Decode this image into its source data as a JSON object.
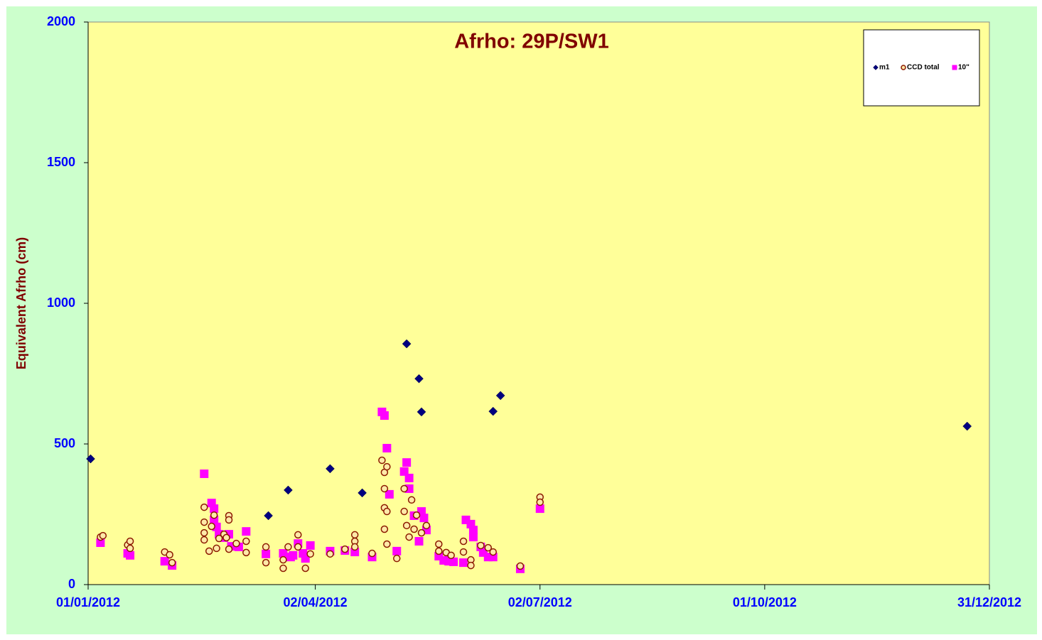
{
  "chart_data": {
    "type": "scatter",
    "title": "Afrho: 29P/SW1",
    "y_label": "Equivalent  Afrho (cm)",
    "xlim": [
      "2012-01-01",
      "2012-12-31"
    ],
    "xticks": [
      {
        "value": "2012-01-01",
        "label": "01/01/2012"
      },
      {
        "value": "2012-04-02",
        "label": "02/04/2012"
      },
      {
        "value": "2012-07-02",
        "label": "02/07/2012"
      },
      {
        "value": "2012-10-01",
        "label": "01/10/2012"
      },
      {
        "value": "2012-12-31",
        "label": "31/12/2012"
      }
    ],
    "ylim": [
      0,
      2000
    ],
    "yticks": [
      0,
      500,
      1000,
      1500,
      2000
    ],
    "legend": "top-right",
    "series": [
      {
        "name": "m1",
        "color": "#000080",
        "marker": "diamond",
        "x": [
          "2012-01-02",
          "2012-03-14",
          "2012-03-22",
          "2012-04-08",
          "2012-04-21",
          "2012-05-09",
          "2012-05-14",
          "2012-05-15",
          "2012-06-13",
          "2012-06-16",
          "2012-12-22"
        ],
        "values": [
          447,
          245,
          336,
          412,
          326,
          856,
          732,
          614,
          616,
          672,
          563
        ]
      },
      {
        "name": "CCD total",
        "color": "#8b1a00",
        "marker": "circle",
        "x": [
          "2012-01-06",
          "2012-01-07",
          "2012-01-17",
          "2012-01-18",
          "2012-01-18",
          "2012-02-01",
          "2012-02-03",
          "2012-02-04",
          "2012-02-17",
          "2012-02-17",
          "2012-02-17",
          "2012-02-17",
          "2012-02-19",
          "2012-02-20",
          "2012-02-21",
          "2012-02-22",
          "2012-02-23",
          "2012-02-25",
          "2012-02-26",
          "2012-02-27",
          "2012-02-27",
          "2012-02-27",
          "2012-03-01",
          "2012-03-05",
          "2012-03-05",
          "2012-03-13",
          "2012-03-13",
          "2012-03-20",
          "2012-03-20",
          "2012-03-22",
          "2012-03-26",
          "2012-03-26",
          "2012-03-29",
          "2012-03-31",
          "2012-04-08",
          "2012-04-14",
          "2012-04-18",
          "2012-04-18",
          "2012-04-18",
          "2012-04-25",
          "2012-04-29",
          "2012-04-30",
          "2012-04-30",
          "2012-04-30",
          "2012-04-30",
          "2012-05-01",
          "2012-05-01",
          "2012-05-01",
          "2012-05-05",
          "2012-05-08",
          "2012-05-08",
          "2012-05-09",
          "2012-05-10",
          "2012-05-11",
          "2012-05-12",
          "2012-05-13",
          "2012-05-15",
          "2012-05-17",
          "2012-05-22",
          "2012-05-22",
          "2012-05-25",
          "2012-05-27",
          "2012-06-01",
          "2012-06-01",
          "2012-06-04",
          "2012-06-04",
          "2012-06-08",
          "2012-06-11",
          "2012-06-13",
          "2012-06-24",
          "2012-07-02",
          "2012-07-02"
        ],
        "values": [
          169,
          174,
          141,
          154,
          129,
          116,
          106,
          78,
          275,
          222,
          184,
          159,
          119,
          207,
          247,
          129,
          164,
          179,
          167,
          245,
          230,
          126,
          146,
          154,
          114,
          134,
          78,
          88,
          58,
          134,
          177,
          134,
          58,
          109,
          109,
          126,
          177,
          154,
          134,
          111,
          442,
          399,
          341,
          273,
          197,
          419,
          260,
          144,
          93,
          341,
          260,
          210,
          169,
          301,
          197,
          247,
          184,
          210,
          144,
          119,
          114,
          104,
          154,
          116,
          88,
          68,
          139,
          131,
          116,
          66,
          311,
          293
        ]
      },
      {
        "name": "10\"",
        "color": "#ff00ff",
        "marker": "square",
        "x": [
          "2012-01-06",
          "2012-01-17",
          "2012-01-18",
          "2012-02-01",
          "2012-02-04",
          "2012-02-17",
          "2012-02-20",
          "2012-02-21",
          "2012-02-21",
          "2012-02-22",
          "2012-02-23",
          "2012-02-25",
          "2012-02-27",
          "2012-02-28",
          "2012-03-02",
          "2012-03-05",
          "2012-03-13",
          "2012-03-20",
          "2012-03-23",
          "2012-03-24",
          "2012-03-26",
          "2012-03-28",
          "2012-03-29",
          "2012-03-31",
          "2012-04-08",
          "2012-04-14",
          "2012-04-18",
          "2012-04-25",
          "2012-04-29",
          "2012-04-30",
          "2012-05-01",
          "2012-05-02",
          "2012-05-05",
          "2012-05-08",
          "2012-05-09",
          "2012-05-10",
          "2012-05-10",
          "2012-05-12",
          "2012-05-14",
          "2012-05-15",
          "2012-05-16",
          "2012-05-17",
          "2012-05-22",
          "2012-05-24",
          "2012-05-26",
          "2012-05-28",
          "2012-06-01",
          "2012-06-02",
          "2012-06-04",
          "2012-06-05",
          "2012-06-05",
          "2012-06-08",
          "2012-06-09",
          "2012-06-11",
          "2012-06-13",
          "2012-06-24",
          "2012-07-02"
        ],
        "values": [
          149,
          111,
          104,
          83,
          68,
          394,
          290,
          270,
          230,
          205,
          179,
          167,
          179,
          136,
          134,
          189,
          109,
          111,
          98,
          104,
          146,
          111,
          93,
          139,
          119,
          121,
          116,
          98,
          614,
          601,
          485,
          321,
          119,
          402,
          434,
          379,
          341,
          245,
          154,
          260,
          237,
          194,
          101,
          86,
          83,
          81,
          78,
          230,
          215,
          194,
          169,
          134,
          114,
          98,
          98,
          56,
          270
        ]
      }
    ]
  }
}
